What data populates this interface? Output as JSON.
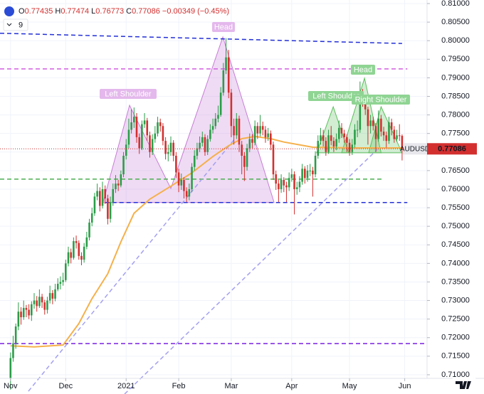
{
  "chart_data": {
    "type": "candlestick",
    "symbol": "AUDUSD",
    "header": {
      "items": [
        {
          "key": "O",
          "value": "0.77435"
        },
        {
          "key": "H",
          "value": "0.77474"
        },
        {
          "key": "L",
          "value": "0.76773"
        },
        {
          "key": "C",
          "value": "0.77086"
        }
      ],
      "change": "−0.00349 (−0.45%)",
      "indicator": "9"
    },
    "last_price_label": "0.77086",
    "up_color": "#2a9d48",
    "down_color": "#d32f2f",
    "open": [
      0.709,
      0.7145,
      0.7185,
      0.723,
      0.727,
      0.7255,
      0.728,
      0.7275,
      0.726,
      0.729,
      0.73,
      0.7285,
      0.731,
      0.7295,
      0.7275,
      0.73,
      0.732,
      0.7305,
      0.733,
      0.7345,
      0.735,
      0.7355,
      0.74,
      0.743,
      0.7415,
      0.746,
      0.7455,
      0.742,
      0.741,
      0.7445,
      0.747,
      0.751,
      0.7535,
      0.758,
      0.7595,
      0.7555,
      0.76,
      0.7575,
      0.752,
      0.7565,
      0.76,
      0.7615,
      0.761,
      0.764,
      0.769,
      0.772,
      0.776,
      0.778,
      0.7795,
      0.774,
      0.771,
      0.7775,
      0.7785,
      0.7745,
      0.77,
      0.7735,
      0.775,
      0.778,
      0.777,
      0.773,
      0.7695,
      0.77,
      0.7725,
      0.769,
      0.7645,
      0.761,
      0.7625,
      0.7595,
      0.758,
      0.76,
      0.766,
      0.769,
      0.771,
      0.7725,
      0.774,
      0.77,
      0.7735,
      0.776,
      0.777,
      0.779,
      0.78,
      0.786,
      0.792,
      0.7955,
      0.786,
      0.777,
      0.7745,
      0.779,
      0.772,
      0.769,
      0.766,
      0.771,
      0.7735,
      0.7725,
      0.777,
      0.775,
      0.777,
      0.776,
      0.774,
      0.775,
      0.772,
      0.764,
      0.7615,
      0.76,
      0.7625,
      0.761,
      0.7605,
      0.763,
      0.764,
      0.76,
      0.7605,
      0.762,
      0.7655,
      0.763,
      0.765,
      0.765,
      0.764,
      0.769,
      0.773,
      0.7745,
      0.773,
      0.77,
      0.7745,
      0.773,
      0.7715,
      0.7735,
      0.7765,
      0.775,
      0.774,
      0.7725,
      0.77,
      0.772,
      0.776,
      0.776,
      0.786,
      0.7835,
      0.7815,
      0.777,
      0.7785,
      0.777,
      0.7735,
      0.779,
      0.7755,
      0.7745,
      0.773,
      0.778,
      0.776,
      0.7735,
      0.7745,
      0.77435
    ],
    "high": [
      0.716,
      0.7205,
      0.7238,
      0.7295,
      0.7282,
      0.73,
      0.7288,
      0.729,
      0.7298,
      0.732,
      0.7312,
      0.733,
      0.7318,
      0.7302,
      0.731,
      0.734,
      0.7328,
      0.7345,
      0.736,
      0.7365,
      0.7375,
      0.741,
      0.7445,
      0.744,
      0.747,
      0.7475,
      0.7462,
      0.743,
      0.7455,
      0.7485,
      0.752,
      0.755,
      0.759,
      0.7615,
      0.7605,
      0.762,
      0.761,
      0.7585,
      0.758,
      0.7615,
      0.7638,
      0.7625,
      0.765,
      0.77,
      0.7735,
      0.779,
      0.7815,
      0.782,
      0.7805,
      0.775,
      0.7785,
      0.7805,
      0.7792,
      0.7755,
      0.7748,
      0.777,
      0.7795,
      0.779,
      0.7778,
      0.774,
      0.772,
      0.7742,
      0.7732,
      0.77,
      0.7655,
      0.7642,
      0.7632,
      0.7605,
      0.7615,
      0.767,
      0.7705,
      0.7725,
      0.7742,
      0.7755,
      0.7748,
      0.7745,
      0.7775,
      0.779,
      0.7805,
      0.7825,
      0.7875,
      0.794,
      0.8007,
      0.7975,
      0.787,
      0.779,
      0.7805,
      0.7798,
      0.773,
      0.77,
      0.7722,
      0.775,
      0.7748,
      0.7785,
      0.778,
      0.78,
      0.7782,
      0.777,
      0.7765,
      0.7758,
      0.7728,
      0.765,
      0.7625,
      0.764,
      0.7632,
      0.762,
      0.7645,
      0.7655,
      0.7648,
      0.762,
      0.7635,
      0.7668,
      0.7662,
      0.7665,
      0.7668,
      0.766,
      0.7702,
      0.7745,
      0.7765,
      0.776,
      0.774,
      0.776,
      0.777,
      0.774,
      0.775,
      0.7785,
      0.7778,
      0.776,
      0.7748,
      0.7735,
      0.7735,
      0.7775,
      0.7785,
      0.789,
      0.787,
      0.7848,
      0.7822,
      0.78,
      0.7795,
      0.7778,
      0.7812,
      0.78,
      0.7768,
      0.7755,
      0.7795,
      0.779,
      0.777,
      0.776,
      0.7775,
      0.77474
    ],
    "low": [
      0.706,
      0.7135,
      0.717,
      0.722,
      0.7235,
      0.7248,
      0.7255,
      0.725,
      0.7245,
      0.7278,
      0.727,
      0.728,
      0.728,
      0.7262,
      0.7265,
      0.7292,
      0.729,
      0.7298,
      0.7325,
      0.733,
      0.734,
      0.735,
      0.7392,
      0.74,
      0.741,
      0.744,
      0.741,
      0.7395,
      0.7402,
      0.7438,
      0.7462,
      0.75,
      0.7528,
      0.757,
      0.754,
      0.7548,
      0.756,
      0.7505,
      0.751,
      0.7555,
      0.759,
      0.7595,
      0.7605,
      0.7632,
      0.768,
      0.771,
      0.775,
      0.7765,
      0.7725,
      0.7695,
      0.7705,
      0.7765,
      0.773,
      0.7685,
      0.7692,
      0.7725,
      0.7742,
      0.7755,
      0.7718,
      0.768,
      0.7675,
      0.769,
      0.7675,
      0.763,
      0.7592,
      0.7598,
      0.7575,
      0.7565,
      0.757,
      0.7592,
      0.765,
      0.768,
      0.77,
      0.7715,
      0.769,
      0.7692,
      0.7728,
      0.775,
      0.7762,
      0.778,
      0.7795,
      0.7852,
      0.791,
      0.7845,
      0.774,
      0.772,
      0.7735,
      0.77,
      0.764,
      0.7622,
      0.765,
      0.77,
      0.771,
      0.7718,
      0.7735,
      0.7742,
      0.7745,
      0.7725,
      0.773,
      0.7705,
      0.7625,
      0.7598,
      0.7565,
      0.759,
      0.7592,
      0.7565,
      0.7595,
      0.762,
      0.7532,
      0.7585,
      0.7592,
      0.7612,
      0.7615,
      0.762,
      0.7635,
      0.758,
      0.7632,
      0.7682,
      0.772,
      0.7715,
      0.769,
      0.7695,
      0.7718,
      0.77,
      0.7705,
      0.7725,
      0.7738,
      0.7725,
      0.77,
      0.769,
      0.7692,
      0.7712,
      0.774,
      0.7752,
      0.7822,
      0.78,
      0.772,
      0.775,
      0.7758,
      0.77,
      0.7728,
      0.7742,
      0.773,
      0.7712,
      0.7722,
      0.7745,
      0.7725,
      0.7728,
      0.773,
      0.76773
    ],
    "close": [
      0.7145,
      0.7185,
      0.723,
      0.727,
      0.7255,
      0.728,
      0.7275,
      0.726,
      0.729,
      0.73,
      0.7285,
      0.731,
      0.7295,
      0.7275,
      0.73,
      0.732,
      0.7305,
      0.733,
      0.7345,
      0.735,
      0.7355,
      0.74,
      0.743,
      0.7415,
      0.746,
      0.7455,
      0.742,
      0.741,
      0.7445,
      0.747,
      0.751,
      0.7535,
      0.758,
      0.7595,
      0.7555,
      0.76,
      0.7575,
      0.752,
      0.7565,
      0.76,
      0.7615,
      0.761,
      0.764,
      0.769,
      0.772,
      0.776,
      0.778,
      0.7795,
      0.774,
      0.771,
      0.7775,
      0.7785,
      0.7745,
      0.77,
      0.7735,
      0.775,
      0.778,
      0.777,
      0.773,
      0.7695,
      0.77,
      0.7725,
      0.769,
      0.7645,
      0.761,
      0.7625,
      0.7595,
      0.758,
      0.76,
      0.766,
      0.769,
      0.771,
      0.7725,
      0.774,
      0.77,
      0.7735,
      0.776,
      0.777,
      0.779,
      0.78,
      0.786,
      0.792,
      0.7955,
      0.786,
      0.777,
      0.7745,
      0.779,
      0.772,
      0.769,
      0.766,
      0.771,
      0.7735,
      0.7725,
      0.777,
      0.775,
      0.777,
      0.776,
      0.774,
      0.775,
      0.772,
      0.764,
      0.7615,
      0.76,
      0.7625,
      0.761,
      0.7605,
      0.763,
      0.764,
      0.76,
      0.7605,
      0.762,
      0.7655,
      0.763,
      0.765,
      0.765,
      0.764,
      0.769,
      0.773,
      0.7745,
      0.773,
      0.77,
      0.7745,
      0.773,
      0.7715,
      0.7735,
      0.7765,
      0.775,
      0.774,
      0.7725,
      0.77,
      0.772,
      0.776,
      0.776,
      0.786,
      0.7835,
      0.7815,
      0.777,
      0.7785,
      0.777,
      0.7735,
      0.779,
      0.7755,
      0.7745,
      0.773,
      0.778,
      0.776,
      0.7735,
      0.7745,
      0.7743,
      0.77086
    ],
    "xlim": [
      -4,
      158.5
    ],
    "xticks": [
      {
        "value": 0,
        "label": "Nov"
      },
      {
        "value": 21,
        "label": "Dec"
      },
      {
        "value": 44,
        "label": "2021"
      },
      {
        "value": 64,
        "label": "Feb"
      },
      {
        "value": 84,
        "label": "Mar"
      },
      {
        "value": 107,
        "label": "Apr"
      },
      {
        "value": 129,
        "label": "May"
      },
      {
        "value": 150,
        "label": "Jun"
      }
    ],
    "ylim": [
      0.70903,
      0.81096
    ],
    "yticks": [
      {
        "value": 0.71,
        "label": "0.71000"
      },
      {
        "value": 0.715,
        "label": "0.71500"
      },
      {
        "value": 0.72,
        "label": "0.72000"
      },
      {
        "value": 0.725,
        "label": "0.72500"
      },
      {
        "value": 0.73,
        "label": "0.73000"
      },
      {
        "value": 0.735,
        "label": "0.73500"
      },
      {
        "value": 0.74,
        "label": "0.74000"
      },
      {
        "value": 0.745,
        "label": "0.74500"
      },
      {
        "value": 0.75,
        "label": "0.75000"
      },
      {
        "value": 0.755,
        "label": "0.75500"
      },
      {
        "value": 0.76,
        "label": "0.76000"
      },
      {
        "value": 0.765,
        "label": "0.76500"
      },
      {
        "value": 0.77,
        "label": "0.77000"
      },
      {
        "value": 0.775,
        "label": "0.77500"
      },
      {
        "value": 0.78,
        "label": "0.78000"
      },
      {
        "value": 0.785,
        "label": "0.78500"
      },
      {
        "value": 0.79,
        "label": "0.79000"
      },
      {
        "value": 0.795,
        "label": "0.79500"
      },
      {
        "value": 0.8,
        "label": "0.80000"
      },
      {
        "value": 0.805,
        "label": "0.80500"
      },
      {
        "value": 0.81,
        "label": "0.81000"
      }
    ],
    "grid": true,
    "moving_average": {
      "color": "#f5b04a",
      "x": [
        0,
        9,
        20,
        26,
        31,
        37,
        42,
        47,
        53,
        61,
        69,
        77,
        83,
        88,
        93,
        99,
        104,
        115,
        131,
        149
      ],
      "values": [
        0.7178,
        0.7175,
        0.718,
        0.7238,
        0.7305,
        0.7372,
        0.7458,
        0.7535,
        0.7573,
        0.7608,
        0.7644,
        0.7688,
        0.7717,
        0.7736,
        0.7742,
        0.7736,
        0.7727,
        0.7713,
        0.7711,
        0.7711
      ]
    },
    "lines": [
      {
        "color": "#2330d6",
        "x": [
          -4,
          149
        ],
        "y": [
          0.802,
          0.79925
        ]
      },
      {
        "color": "#d25fe0",
        "x": [
          -4,
          151
        ],
        "y": [
          0.7924,
          0.7924
        ]
      },
      {
        "color": "#4caf50",
        "x": [
          -4,
          142
        ],
        "y": [
          0.7627,
          0.7627
        ]
      },
      {
        "color": "#2330d6",
        "x": [
          36,
          151
        ],
        "y": [
          0.7564,
          0.7564
        ]
      },
      {
        "color": "#7a1fe0",
        "x": [
          -4,
          158.5
        ],
        "y": [
          0.7184,
          0.7184
        ]
      },
      {
        "color": "#a4a0f0",
        "x": [
          6.8,
          85.4
        ],
        "y": [
          0.70556,
          0.7736
        ]
      },
      {
        "color": "#a4a0f0",
        "x": [
          43.4,
          139.6
        ],
        "y": [
          0.7048,
          0.77072
        ]
      }
    ],
    "patterns": [
      {
        "color": "#c77dd6",
        "x": [
          35.2,
          45.3,
          61,
          80.8,
          100.3
        ],
        "y": [
          0.7564,
          0.7826,
          0.7602,
          0.801,
          0.7564
        ]
      },
      {
        "color": "#5cbf5c",
        "x": [
          116.5,
          122.8,
          128.7
        ],
        "y": [
          0.7698,
          0.7822,
          0.7698
        ]
      },
      {
        "color": "#5cbf5c",
        "x": [
          126,
          134.7,
          141
        ],
        "y": [
          0.7698,
          0.7899,
          0.7698
        ]
      },
      {
        "color": "#5cbf5c",
        "x": [
          136.3,
          141,
          149
        ],
        "y": [
          0.7698,
          0.7822,
          0.7698
        ]
      }
    ],
    "annotations": [
      "Head",
      "Left Shoulder",
      "Left Shoulder",
      "Head",
      "Right Shoulder"
    ]
  }
}
